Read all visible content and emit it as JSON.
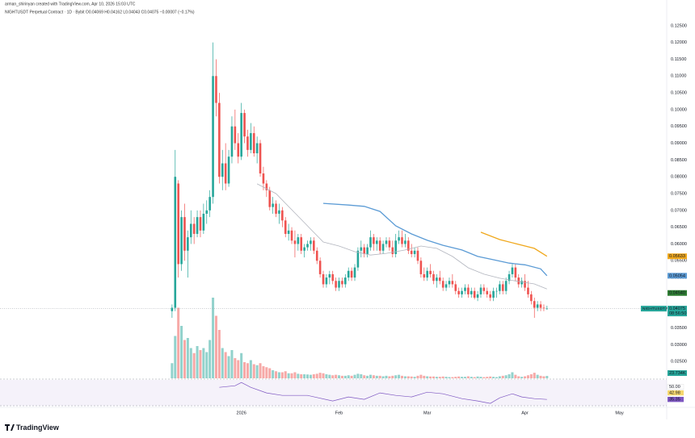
{
  "chart_data": {
    "type": "candlestick",
    "header": {
      "author_line": "arman_shirinyan created with TradingView.com, Apr 10, 2026 15:03 UTC",
      "symbol_line": "NIGHTUSDT Perpetual Contract · 1D · Bybit   O0.04069 H0.04162 L0.04043 C0.04075 −0.00007 (−0.17%)"
    },
    "logo": "TradingView",
    "colors": {
      "up": "#26a69a",
      "down": "#ef5350"
    },
    "xlim": [
      -54.6,
      157
    ],
    "xticks": [
      {
        "value": 22,
        "label": "2026"
      },
      {
        "value": 53,
        "label": "Feb"
      },
      {
        "value": 81,
        "label": "Mar"
      },
      {
        "value": 112,
        "label": "Apr"
      },
      {
        "value": 142,
        "label": "May"
      }
    ],
    "ylim": [
      0.02,
      0.13
    ],
    "yticks": [
      {
        "value": 0.125,
        "label": "0.12500"
      },
      {
        "value": 0.12,
        "label": "0.12000"
      },
      {
        "value": 0.115,
        "label": "0.11500"
      },
      {
        "value": 0.11,
        "label": "0.11000"
      },
      {
        "value": 0.105,
        "label": "0.10500"
      },
      {
        "value": 0.1,
        "label": "0.10000"
      },
      {
        "value": 0.095,
        "label": "0.09500"
      },
      {
        "value": 0.09,
        "label": "0.09000"
      },
      {
        "value": 0.085,
        "label": "0.08500"
      },
      {
        "value": 0.08,
        "label": "0.08000"
      },
      {
        "value": 0.075,
        "label": "0.07500"
      },
      {
        "value": 0.07,
        "label": "0.07000"
      },
      {
        "value": 0.065,
        "label": "0.06500"
      },
      {
        "value": 0.06,
        "label": "0.06000"
      },
      {
        "value": 0.055,
        "label": "0.05500"
      },
      {
        "value": 0.05,
        "label": "0.05000"
      },
      {
        "value": 0.045,
        "label": "0.04500"
      },
      {
        "value": 0.04,
        "label": "0.04000"
      },
      {
        "value": 0.035,
        "label": "0.03500"
      },
      {
        "value": 0.03,
        "label": "0.03000"
      },
      {
        "value": 0.025,
        "label": "0.02500"
      }
    ],
    "grid": false,
    "ohlc": [
      [
        0.04,
        0.042,
        0.038,
        0.041
      ],
      [
        0.041,
        0.088,
        0.04,
        0.08
      ],
      [
        0.078,
        0.079,
        0.05,
        0.054
      ],
      [
        0.054,
        0.07,
        0.052,
        0.068
      ],
      [
        0.068,
        0.072,
        0.055,
        0.058
      ],
      [
        0.058,
        0.064,
        0.05,
        0.062
      ],
      [
        0.062,
        0.07,
        0.06,
        0.066
      ],
      [
        0.066,
        0.068,
        0.06,
        0.063
      ],
      [
        0.063,
        0.07,
        0.062,
        0.068
      ],
      [
        0.068,
        0.07,
        0.062,
        0.064
      ],
      [
        0.064,
        0.072,
        0.063,
        0.069
      ],
      [
        0.069,
        0.073,
        0.066,
        0.07
      ],
      [
        0.07,
        0.076,
        0.068,
        0.074
      ],
      [
        0.074,
        0.12,
        0.072,
        0.11
      ],
      [
        0.11,
        0.115,
        0.098,
        0.102
      ],
      [
        0.102,
        0.105,
        0.078,
        0.08
      ],
      [
        0.08,
        0.088,
        0.076,
        0.084
      ],
      [
        0.084,
        0.09,
        0.076,
        0.078
      ],
      [
        0.078,
        0.088,
        0.077,
        0.086
      ],
      [
        0.086,
        0.098,
        0.084,
        0.095
      ],
      [
        0.095,
        0.1,
        0.088,
        0.09
      ],
      [
        0.09,
        0.093,
        0.084,
        0.086
      ],
      [
        0.086,
        0.102,
        0.085,
        0.099
      ],
      [
        0.099,
        0.1,
        0.09,
        0.092
      ],
      [
        0.092,
        0.094,
        0.086,
        0.088
      ],
      [
        0.088,
        0.096,
        0.087,
        0.093
      ],
      [
        0.093,
        0.095,
        0.086,
        0.087
      ],
      [
        0.087,
        0.092,
        0.084,
        0.09
      ],
      [
        0.09,
        0.091,
        0.08,
        0.081
      ],
      [
        0.081,
        0.083,
        0.076,
        0.078
      ],
      [
        0.078,
        0.079,
        0.074,
        0.076
      ],
      [
        0.076,
        0.077,
        0.07,
        0.071
      ],
      [
        0.071,
        0.074,
        0.069,
        0.072
      ],
      [
        0.072,
        0.073,
        0.068,
        0.069
      ],
      [
        0.069,
        0.072,
        0.066,
        0.07
      ],
      [
        0.07,
        0.071,
        0.065,
        0.067
      ],
      [
        0.067,
        0.068,
        0.062,
        0.063
      ],
      [
        0.063,
        0.066,
        0.061,
        0.064
      ],
      [
        0.064,
        0.065,
        0.06,
        0.061
      ],
      [
        0.061,
        0.064,
        0.056,
        0.06
      ],
      [
        0.06,
        0.063,
        0.058,
        0.062
      ],
      [
        0.062,
        0.063,
        0.057,
        0.058
      ],
      [
        0.058,
        0.06,
        0.056,
        0.059
      ],
      [
        0.059,
        0.061,
        0.058,
        0.06
      ],
      [
        0.06,
        0.062,
        0.058,
        0.061
      ],
      [
        0.061,
        0.062,
        0.057,
        0.058
      ],
      [
        0.058,
        0.059,
        0.054,
        0.055
      ],
      [
        0.055,
        0.056,
        0.05,
        0.051
      ],
      [
        0.051,
        0.052,
        0.047,
        0.048
      ],
      [
        0.048,
        0.051,
        0.047,
        0.05
      ],
      [
        0.05,
        0.052,
        0.048,
        0.051
      ],
      [
        0.051,
        0.052,
        0.048,
        0.049
      ],
      [
        0.049,
        0.05,
        0.046,
        0.047
      ],
      [
        0.047,
        0.05,
        0.046,
        0.049
      ],
      [
        0.049,
        0.05,
        0.047,
        0.048
      ],
      [
        0.048,
        0.051,
        0.047,
        0.05
      ],
      [
        0.05,
        0.053,
        0.049,
        0.052
      ],
      [
        0.052,
        0.053,
        0.049,
        0.05
      ],
      [
        0.05,
        0.054,
        0.049,
        0.053
      ],
      [
        0.053,
        0.059,
        0.052,
        0.058
      ],
      [
        0.058,
        0.061,
        0.056,
        0.059
      ],
      [
        0.059,
        0.06,
        0.056,
        0.057
      ],
      [
        0.057,
        0.06,
        0.056,
        0.059
      ],
      [
        0.059,
        0.064,
        0.058,
        0.062
      ],
      [
        0.062,
        0.063,
        0.058,
        0.06
      ],
      [
        0.06,
        0.062,
        0.058,
        0.061
      ],
      [
        0.061,
        0.062,
        0.057,
        0.058
      ],
      [
        0.058,
        0.061,
        0.057,
        0.06
      ],
      [
        0.06,
        0.062,
        0.059,
        0.061
      ],
      [
        0.061,
        0.062,
        0.058,
        0.059
      ],
      [
        0.059,
        0.061,
        0.056,
        0.057
      ],
      [
        0.057,
        0.063,
        0.056,
        0.061
      ],
      [
        0.061,
        0.064,
        0.06,
        0.062
      ],
      [
        0.062,
        0.064,
        0.059,
        0.06
      ],
      [
        0.06,
        0.063,
        0.059,
        0.061
      ],
      [
        0.061,
        0.062,
        0.057,
        0.058
      ],
      [
        0.058,
        0.06,
        0.056,
        0.057
      ],
      [
        0.057,
        0.059,
        0.056,
        0.058
      ],
      [
        0.058,
        0.059,
        0.054,
        0.055
      ],
      [
        0.055,
        0.056,
        0.05,
        0.051
      ],
      [
        0.051,
        0.053,
        0.049,
        0.05
      ],
      [
        0.05,
        0.053,
        0.049,
        0.052
      ],
      [
        0.052,
        0.054,
        0.05,
        0.051
      ],
      [
        0.051,
        0.052,
        0.048,
        0.049
      ],
      [
        0.049,
        0.051,
        0.047,
        0.05
      ],
      [
        0.05,
        0.052,
        0.048,
        0.049
      ],
      [
        0.049,
        0.05,
        0.046,
        0.047
      ],
      [
        0.047,
        0.049,
        0.046,
        0.048
      ],
      [
        0.048,
        0.05,
        0.047,
        0.049
      ],
      [
        0.049,
        0.051,
        0.047,
        0.048
      ],
      [
        0.048,
        0.049,
        0.045,
        0.046
      ],
      [
        0.046,
        0.047,
        0.044,
        0.045
      ],
      [
        0.045,
        0.047,
        0.044,
        0.046
      ],
      [
        0.046,
        0.048,
        0.045,
        0.047
      ],
      [
        0.047,
        0.048,
        0.044,
        0.045
      ],
      [
        0.045,
        0.047,
        0.044,
        0.046
      ],
      [
        0.046,
        0.047,
        0.0435,
        0.044
      ],
      [
        0.044,
        0.046,
        0.043,
        0.045
      ],
      [
        0.045,
        0.048,
        0.044,
        0.047
      ],
      [
        0.047,
        0.048,
        0.045,
        0.046
      ],
      [
        0.046,
        0.047,
        0.044,
        0.045
      ],
      [
        0.045,
        0.046,
        0.043,
        0.044
      ],
      [
        0.044,
        0.047,
        0.043,
        0.046
      ],
      [
        0.046,
        0.047,
        0.044,
        0.046
      ],
      [
        0.046,
        0.049,
        0.045,
        0.048
      ],
      [
        0.048,
        0.049,
        0.045,
        0.046
      ],
      [
        0.046,
        0.05,
        0.045,
        0.049
      ],
      [
        0.049,
        0.052,
        0.048,
        0.051
      ],
      [
        0.051,
        0.054,
        0.05,
        0.053
      ],
      [
        0.053,
        0.054,
        0.049,
        0.05
      ],
      [
        0.05,
        0.051,
        0.047,
        0.048
      ],
      [
        0.048,
        0.05,
        0.047,
        0.049
      ],
      [
        0.049,
        0.051,
        0.046,
        0.047
      ],
      [
        0.047,
        0.049,
        0.044,
        0.045
      ],
      [
        0.045,
        0.046,
        0.042,
        0.043
      ],
      [
        0.043,
        0.044,
        0.038,
        0.041
      ],
      [
        0.041,
        0.043,
        0.04,
        0.042
      ],
      [
        0.042,
        0.043,
        0.04,
        0.041
      ],
      [
        0.041,
        0.042,
        0.04,
        0.04082
      ],
      [
        0.04069,
        0.04162,
        0.04043,
        0.04075
      ]
    ],
    "volume": [
      150,
      420,
      700,
      520,
      380,
      400,
      300,
      250,
      320,
      280,
      300,
      260,
      380,
      800,
      620,
      480,
      300,
      260,
      220,
      280,
      200,
      180,
      250,
      160,
      150,
      180,
      140,
      130,
      150,
      120,
      110,
      100,
      80,
      70,
      60,
      60,
      70,
      50,
      50,
      60,
      45,
      40,
      40,
      38,
      35,
      40,
      45,
      55,
      50,
      40,
      35,
      30,
      35,
      30,
      25,
      25,
      30,
      25,
      35,
      45,
      40,
      30,
      25,
      35,
      30,
      25,
      25,
      20,
      25,
      20,
      25,
      30,
      35,
      25,
      20,
      20,
      18,
      15,
      25,
      35,
      25,
      20,
      18,
      18,
      15,
      15,
      18,
      15,
      12,
      12,
      15,
      18,
      15,
      15,
      20,
      15,
      12,
      18,
      15,
      12,
      15,
      18,
      15,
      12,
      20,
      25,
      30,
      40,
      60,
      35,
      20,
      15,
      20,
      30,
      40,
      55,
      35,
      25,
      20,
      23.734
    ],
    "volume_label": "23.734K",
    "vlim": [
      0,
      800
    ],
    "ma_lines": [
      {
        "color": "#b2b5be",
        "x": [
          27,
          33,
          38,
          43,
          48,
          53,
          58,
          63,
          68,
          74,
          79,
          84,
          89,
          94,
          99,
          104,
          109,
          115,
          119
        ],
        "values": [
          0.0779,
          0.075,
          0.0702,
          0.0654,
          0.0606,
          0.0594,
          0.0577,
          0.0567,
          0.0572,
          0.0582,
          0.0594,
          0.0587,
          0.0563,
          0.0529,
          0.051,
          0.0498,
          0.049,
          0.0481,
          0.0466
        ]
      },
      {
        "color": "#5b9bd5",
        "x": [
          48,
          56,
          61,
          66,
          71,
          76,
          81,
          86,
          92,
          97,
          102,
          107,
          112,
          117,
          119
        ],
        "values": [
          0.0721,
          0.0716,
          0.0712,
          0.0697,
          0.0654,
          0.063,
          0.0611,
          0.0596,
          0.0582,
          0.0563,
          0.0553,
          0.0543,
          0.0538,
          0.0526,
          0.05054
        ]
      },
      {
        "color": "#f0a81c",
        "x": [
          98,
          104,
          109,
          115,
          119
        ],
        "values": [
          0.0635,
          0.0613,
          0.0601,
          0.0587,
          0.05633
        ]
      }
    ],
    "price_labels": [
      {
        "value": 0.05633,
        "label": "0.05633",
        "color": "#f0a81c"
      },
      {
        "value": 0.05054,
        "label": "0.05054",
        "color": "#5b9bd5"
      },
      {
        "value": 0.0454,
        "label": "0.04540",
        "color": "#2e7d32"
      }
    ],
    "current": {
      "value": 0.04075,
      "label": "0.04075",
      "countdown": "08:56:50",
      "symbol": "NIGHTUSDT.P"
    },
    "rsi": {
      "ylim": [
        28,
        59
      ],
      "color": "#7e57c2",
      "x": [
        15,
        20,
        22,
        25,
        30,
        35,
        43,
        51,
        56,
        61,
        66,
        71,
        76,
        81,
        86,
        92,
        97,
        101,
        104,
        108,
        111,
        115,
        119
      ],
      "values": [
        49.4,
        51.3,
        55.1,
        49.4,
        42.9,
        40.0,
        40.0,
        33.5,
        38.2,
        35.4,
        42.9,
        40.0,
        38.2,
        43.8,
        41.9,
        36.3,
        33.5,
        30.7,
        37.2,
        41.9,
        38.2,
        36.3,
        35.35
      ],
      "labels": [
        {
          "value": 50,
          "label": "50.00",
          "color": "#ffffff"
        },
        {
          "value": 42.98,
          "label": "42.98",
          "color": "#f5d76e"
        },
        {
          "value": 35.35,
          "label": "35.35",
          "color": "#7e57c2"
        }
      ]
    }
  }
}
